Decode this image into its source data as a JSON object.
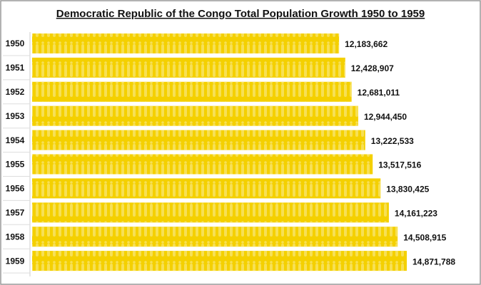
{
  "chart_data": {
    "type": "bar",
    "orientation": "horizontal",
    "title": "Democratic Republic of the Congo Total Population Growth 1950 to 1959",
    "categories": [
      "1950",
      "1951",
      "1952",
      "1953",
      "1954",
      "1955",
      "1956",
      "1957",
      "1958",
      "1959"
    ],
    "values": [
      12183662,
      12428907,
      12681011,
      12944450,
      13222533,
      13517516,
      13830425,
      14161223,
      14508915,
      14871788
    ],
    "value_labels": [
      "12,183,662",
      "12,428,907",
      "12,681,011",
      "12,944,450",
      "13,222,533",
      "13,517,516",
      "13,830,425",
      "14,161,223",
      "14,508,915",
      "14,871,788"
    ],
    "color": "#f4d000"
  }
}
